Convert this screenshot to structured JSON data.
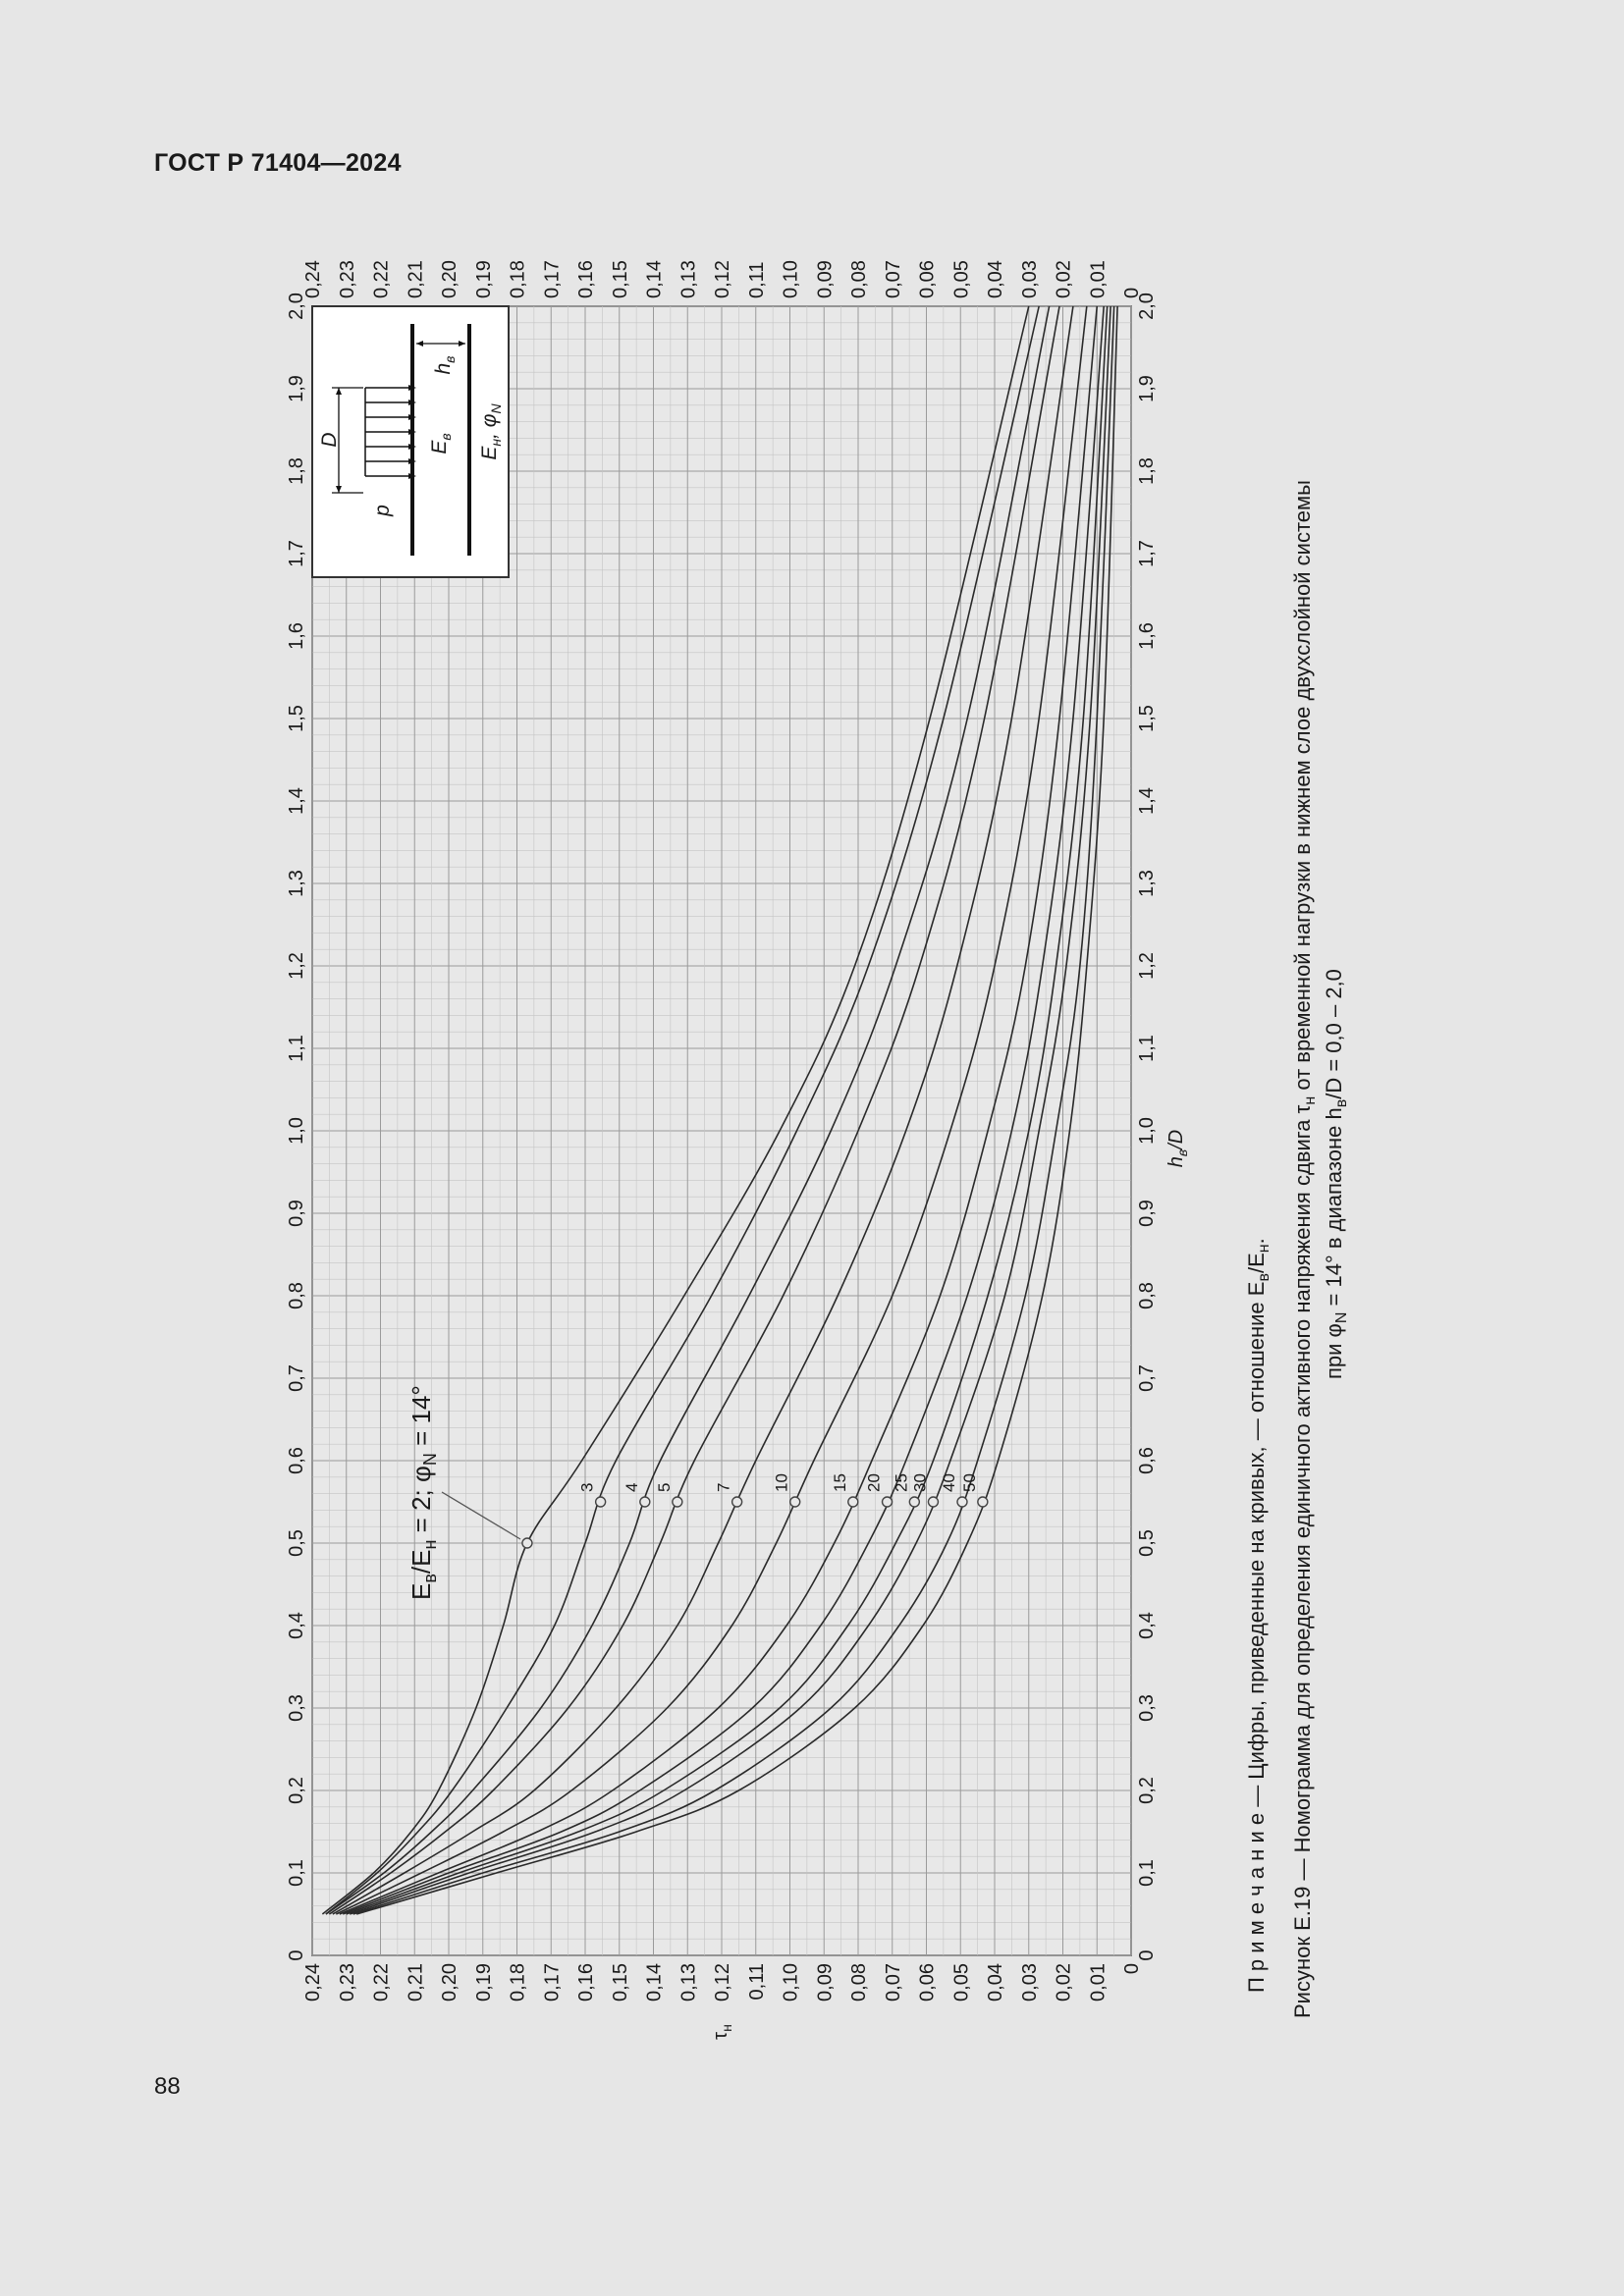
{
  "header": {
    "standard": "ГОСТ Р 71404—2024"
  },
  "page_number": "88",
  "figure": {
    "note": "П р и м е ч а н и е — Цифры, приведенные на кривых, — отношение E",
    "note_sub1": "в",
    "note_mid": "/E",
    "note_sub2": "н",
    "note_end": ".",
    "caption_line1_a": "Рисунок Е.19 — Номограмма для определения единичного активного напряжения сдвига τ",
    "caption_line1_sub": "н",
    "caption_line1_b": " от временной нагрузки в нижнем слое двухслойной системы",
    "caption_line2_a": "при φ",
    "caption_line2_sub1": "N",
    "caption_line2_b": " = 14° в диапазоне h",
    "caption_line2_sub2": "в",
    "caption_line2_c": "/D = 0,0 – 2,0",
    "curve_annotation": "E",
    "curve_annotation_sub1": "в",
    "curve_annotation_mid": "/E",
    "curve_annotation_sub2": "н",
    "curve_annotation_end": " = 2; φ",
    "curve_annotation_sub3": "N",
    "curve_annotation_tail": " = 14°",
    "inset": {
      "p": "p",
      "D": "D",
      "h": "h",
      "h_sub": "в",
      "Ev": "E",
      "Ev_sub": "в",
      "En": "E",
      "En_sub": "н",
      "phi": ", φ",
      "phi_sub": "N"
    }
  },
  "chart_data": {
    "type": "line",
    "xlabel": "h",
    "xlabel_sub": "в",
    "xlabel_tail": "/D",
    "ylabel": "τ",
    "ylabel_sub": "н",
    "xlim": [
      0,
      2.0
    ],
    "ylim": [
      0,
      0.24
    ],
    "x_ticks": [
      "0",
      "0,1",
      "0,2",
      "0,3",
      "0,4",
      "0,5",
      "0,6",
      "0,7",
      "0,8",
      "0,9",
      "1,0",
      "1,1",
      "1,2",
      "1,3",
      "1,4",
      "1,5",
      "1,6",
      "1,7",
      "1,8",
      "1,9",
      "2,0"
    ],
    "y_ticks": [
      "0",
      "0,01",
      "0,02",
      "0,03",
      "0,04",
      "0,05",
      "0,06",
      "0,07",
      "0,08",
      "0,09",
      "0,10",
      "0,11",
      "0,12",
      "0,13",
      "0,14",
      "0,15",
      "0,16",
      "0,17",
      "0,18",
      "0,19",
      "0,20",
      "0,21",
      "0,22",
      "0,23",
      "0,24"
    ],
    "x": [
      0.05,
      0.1,
      0.15,
      0.2,
      0.3,
      0.4,
      0.5,
      0.6,
      0.8,
      1.0,
      1.2,
      1.5,
      2.0
    ],
    "series": [
      {
        "name": "2",
        "values": [
          0.237,
          0.222,
          0.211,
          0.203,
          0.192,
          0.184,
          0.177,
          0.161,
          0.131,
          0.103,
          0.081,
          0.059,
          0.03
        ]
      },
      {
        "name": "3",
        "values": [
          0.236,
          0.221,
          0.209,
          0.199,
          0.183,
          0.169,
          0.16,
          0.151,
          0.123,
          0.098,
          0.077,
          0.055,
          0.027
        ]
      },
      {
        "name": "4",
        "values": [
          0.236,
          0.219,
          0.205,
          0.193,
          0.173,
          0.158,
          0.147,
          0.138,
          0.112,
          0.088,
          0.069,
          0.048,
          0.024
        ]
      },
      {
        "name": "5",
        "values": [
          0.235,
          0.217,
          0.201,
          0.187,
          0.165,
          0.149,
          0.138,
          0.128,
          0.102,
          0.08,
          0.062,
          0.043,
          0.021
        ]
      },
      {
        "name": "7",
        "values": [
          0.234,
          0.213,
          0.193,
          0.175,
          0.151,
          0.133,
          0.121,
          0.11,
          0.086,
          0.066,
          0.051,
          0.035,
          0.017
        ]
      },
      {
        "name": "10",
        "values": [
          0.233,
          0.208,
          0.184,
          0.164,
          0.136,
          0.117,
          0.104,
          0.093,
          0.07,
          0.053,
          0.04,
          0.027,
          0.013
        ]
      },
      {
        "name": "15",
        "values": [
          0.232,
          0.203,
          0.174,
          0.152,
          0.121,
          0.101,
          0.087,
          0.076,
          0.056,
          0.042,
          0.031,
          0.021,
          0.01
        ]
      },
      {
        "name": "20",
        "values": [
          0.231,
          0.2,
          0.167,
          0.144,
          0.111,
          0.091,
          0.077,
          0.066,
          0.048,
          0.035,
          0.026,
          0.017,
          0.008
        ]
      },
      {
        "name": "25",
        "values": [
          0.23,
          0.197,
          0.162,
          0.137,
          0.103,
          0.083,
          0.069,
          0.058,
          0.042,
          0.03,
          0.022,
          0.014,
          0.007
        ]
      },
      {
        "name": "30",
        "values": [
          0.229,
          0.194,
          0.157,
          0.131,
          0.097,
          0.077,
          0.063,
          0.053,
          0.037,
          0.027,
          0.019,
          0.012,
          0.006
        ]
      },
      {
        "name": "40",
        "values": [
          0.228,
          0.19,
          0.15,
          0.122,
          0.088,
          0.068,
          0.054,
          0.045,
          0.031,
          0.022,
          0.015,
          0.01,
          0.005
        ]
      },
      {
        "name": "50",
        "values": [
          0.227,
          0.186,
          0.145,
          0.115,
          0.081,
          0.061,
          0.048,
          0.039,
          0.026,
          0.018,
          0.013,
          0.008,
          0.004
        ]
      }
    ],
    "label_x": 0.55,
    "grid": true
  }
}
